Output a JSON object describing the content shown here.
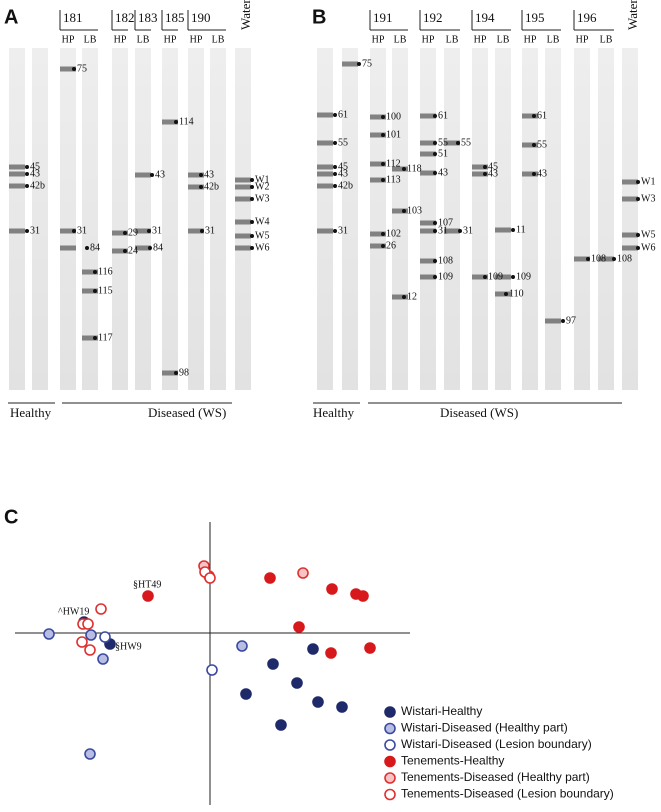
{
  "panels": [
    {
      "letter": "A",
      "samples": [
        "181",
        "182",
        "183",
        "185",
        "190"
      ],
      "water": "Water",
      "lanes": [
        "HP",
        "LB",
        "HP",
        "LB",
        "HP",
        "HP",
        "LB"
      ],
      "groups": [
        "Healthy",
        "Diseased (WS)"
      ],
      "band_labels": [
        "45",
        "43",
        "42b",
        "31",
        "75",
        "31",
        "84",
        "116",
        "115",
        "117",
        "29",
        "24",
        "43",
        "31",
        "84",
        "114",
        "98",
        "43",
        "42b",
        "31",
        "W1",
        "W2",
        "W3",
        "W4",
        "W5",
        "W6"
      ]
    },
    {
      "letter": "B",
      "samples": [
        "191",
        "192",
        "194",
        "195",
        "196"
      ],
      "water": "Water",
      "lanes": [
        "HP",
        "LB",
        "HP",
        "LB",
        "HP",
        "LB",
        "HP",
        "LB",
        "HP",
        "LB"
      ],
      "groups": [
        "Healthy",
        "Diseased (WS)"
      ],
      "band_labels": [
        "75",
        "61",
        "55",
        "45",
        "43",
        "42b",
        "31",
        "100",
        "101",
        "112",
        "113",
        "102",
        "26",
        "118",
        "103",
        "12",
        "61",
        "55",
        "51",
        "43",
        "107",
        "31",
        "108",
        "109",
        "55",
        "31",
        "45",
        "43",
        "109",
        "110",
        "11",
        "61",
        "55",
        "43",
        "109",
        "97",
        "108",
        "108",
        "W1",
        "W3",
        "W5",
        "W6"
      ]
    }
  ],
  "chart_data": {
    "type": "scatter",
    "label": "C",
    "xlim": [
      -4,
      4
    ],
    "ylim": [
      -3.5,
      2.3
    ],
    "annotations": [
      "^HW19",
      "§HT49",
      "§HW9"
    ],
    "series": [
      {
        "name": "Wistari-Healthy",
        "color": "#1f2a6b",
        "fill": "#1f2a6b",
        "x": [
          -2.52,
          -2.0,
          2.06,
          1.26,
          1.74,
          0.72,
          2.16,
          2.64,
          1.42
        ],
        "values": [
          0.22,
          -0.22,
          -0.32,
          -0.62,
          -1.0,
          -1.22,
          -1.38,
          -1.48,
          -1.84
        ]
      },
      {
        "name": "Wistari-Diseased (Healthy part)",
        "color": "#3a4aa0",
        "fill": "#b7bde3",
        "x": [
          -3.22,
          -2.38,
          -2.14,
          0.64,
          -2.4
        ],
        "values": [
          -0.02,
          -0.04,
          -0.52,
          -0.26,
          -2.42
        ]
      },
      {
        "name": "Wistari-Diseased (Lesion boundary)",
        "color": "#3a4aa0",
        "fill": "#ffffff",
        "x": [
          -2.1,
          0.04
        ],
        "values": [
          -0.08,
          -0.74
        ]
      },
      {
        "name": "Tenements-Healthy",
        "color": "#d7191c",
        "fill": "#d7191c",
        "x": [
          -1.24,
          1.2,
          2.44,
          2.92,
          3.06,
          1.78,
          2.42,
          3.2
        ],
        "values": [
          0.74,
          1.1,
          0.88,
          0.78,
          0.74,
          0.12,
          -0.4,
          -0.3
        ]
      },
      {
        "name": "Tenements-Diseased (Healthy part)",
        "color": "#e03030",
        "fill": "#f6c4c4",
        "x": [
          -0.12,
          -0.02,
          1.86
        ],
        "values": [
          1.34,
          1.14,
          1.2
        ]
      },
      {
        "name": "Tenements-Diseased (Lesion boundary)",
        "color": "#e03030",
        "fill": "#ffffff",
        "x": [
          -2.18,
          -2.54,
          -2.44,
          -2.56,
          -2.4,
          -0.1,
          0
        ],
        "values": [
          0.48,
          0.18,
          0.18,
          -0.18,
          -0.34,
          1.22,
          1.1
        ]
      }
    ]
  }
}
